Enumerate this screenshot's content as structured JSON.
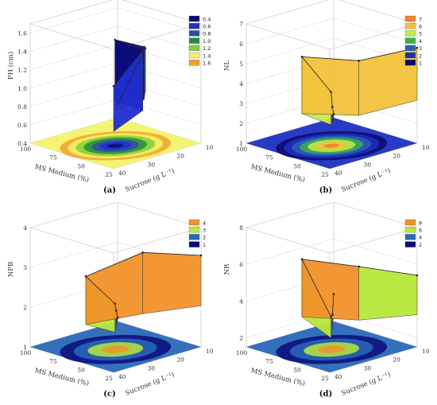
{
  "chart_data": [
    {
      "panel": "(a)",
      "type": "surface3d",
      "zlabel": "PH (cm)",
      "xlabel": "MS Medium (%)",
      "ylabel": "Sucrose (g L⁻¹)",
      "x_ticks": [
        "100",
        "75",
        "50",
        "25"
      ],
      "y_ticks": [
        "10",
        "20",
        "30",
        "40"
      ],
      "z_ticks": [
        "0.4",
        "0.6",
        "0.8",
        "1.0",
        "1.2",
        "1.4",
        "1.6"
      ],
      "zlim": [
        0.4,
        1.7
      ],
      "legend": [
        {
          "label": "0.4",
          "color": "#0b0b7a"
        },
        {
          "label": "0.6",
          "color": "#1f2fd0"
        },
        {
          "label": "0.8",
          "color": "#2b4fa8"
        },
        {
          "label": "1.0",
          "color": "#2a8a3a"
        },
        {
          "label": "1.2",
          "color": "#7fd03a"
        },
        {
          "label": "1.4",
          "color": "#f3f36a"
        },
        {
          "label": "1.6",
          "color": "#f2a22a"
        }
      ],
      "surface": [
        {
          "x": 100,
          "y": 10,
          "z": 0.55
        },
        {
          "x": 75,
          "y": 10,
          "z": 1.25
        },
        {
          "x": 50,
          "y": 20,
          "z": 1.45
        },
        {
          "x": 50,
          "y": 30,
          "z": 1.62
        },
        {
          "x": 25,
          "y": 30,
          "z": 1.6
        },
        {
          "x": 25,
          "y": 40,
          "z": 1.3
        }
      ]
    },
    {
      "panel": "(b)",
      "type": "surface3d",
      "zlabel": "NL",
      "xlabel": "MS Medium (%)",
      "ylabel": "Sucrose (g L⁻¹)",
      "x_ticks": [
        "100",
        "75",
        "50",
        "25"
      ],
      "y_ticks": [
        "10",
        "20",
        "30",
        "40"
      ],
      "z_ticks": [
        "1",
        "2",
        "3",
        "4",
        "5",
        "6",
        "7"
      ],
      "zlim": [
        1,
        7
      ],
      "legend": [
        {
          "label": "7",
          "color": "#f2832a"
        },
        {
          "label": "6",
          "color": "#f3c23a"
        },
        {
          "label": "5",
          "color": "#c8ea4a"
        },
        {
          "label": "4",
          "color": "#3bb04a"
        },
        {
          "label": "3",
          "color": "#2a5fb8"
        },
        {
          "label": "2",
          "color": "#1d2fc2"
        },
        {
          "label": "1",
          "color": "#0b0b6a"
        }
      ],
      "surface": [
        {
          "x": 100,
          "y": 10,
          "z": 1.2
        },
        {
          "x": 75,
          "y": 20,
          "z": 2.4
        },
        {
          "x": 50,
          "y": 30,
          "z": 4.0
        },
        {
          "x": 50,
          "y": 40,
          "z": 6.2
        },
        {
          "x": 25,
          "y": 30,
          "z": 6.0
        },
        {
          "x": 25,
          "y": 10,
          "z": 5.8
        }
      ]
    },
    {
      "panel": "(c)",
      "type": "surface3d",
      "zlabel": "NPB",
      "xlabel": "MS Medium (%)",
      "ylabel": "Sucrose (g L⁻¹)",
      "x_ticks": [
        "100",
        "75",
        "50",
        "25"
      ],
      "y_ticks": [
        "10",
        "20",
        "30",
        "40"
      ],
      "z_ticks": [
        "1",
        "2",
        "3",
        "4"
      ],
      "zlim": [
        1,
        4
      ],
      "legend": [
        {
          "label": "4",
          "color": "#f2922a"
        },
        {
          "label": "3",
          "color": "#b8e83a"
        },
        {
          "label": "2",
          "color": "#2a68b8"
        },
        {
          "label": "1",
          "color": "#0b0b7a"
        }
      ],
      "surface": [
        {
          "x": 100,
          "y": 10,
          "z": 1.1
        },
        {
          "x": 75,
          "y": 20,
          "z": 1.7
        },
        {
          "x": 50,
          "y": 30,
          "z": 2.3
        },
        {
          "x": 50,
          "y": 40,
          "z": 3.2
        },
        {
          "x": 25,
          "y": 30,
          "z": 3.8
        },
        {
          "x": 25,
          "y": 10,
          "z": 3.3
        }
      ]
    },
    {
      "panel": "(d)",
      "type": "surface3d",
      "zlabel": "NR",
      "xlabel": "MS Medium (%)",
      "ylabel": "Sucrose (g L⁻¹)",
      "x_ticks": [
        "100",
        "75",
        "50",
        "25"
      ],
      "y_ticks": [
        "10",
        "20",
        "30",
        "40"
      ],
      "z_ticks": [
        "2",
        "4",
        "6",
        "8"
      ],
      "zlim": [
        1.5,
        8
      ],
      "legend": [
        {
          "label": "8",
          "color": "#f2922a"
        },
        {
          "label": "6",
          "color": "#b8e83a"
        },
        {
          "label": "4",
          "color": "#2a68b8"
        },
        {
          "label": "2",
          "color": "#0b0b7a"
        }
      ],
      "surface": [
        {
          "x": 100,
          "y": 10,
          "z": 3.0
        },
        {
          "x": 75,
          "y": 20,
          "z": 2.8
        },
        {
          "x": 50,
          "y": 30,
          "z": 3.6
        },
        {
          "x": 50,
          "y": 40,
          "z": 7.2
        },
        {
          "x": 25,
          "y": 30,
          "z": 6.8
        },
        {
          "x": 25,
          "y": 10,
          "z": 5.4
        }
      ]
    }
  ]
}
